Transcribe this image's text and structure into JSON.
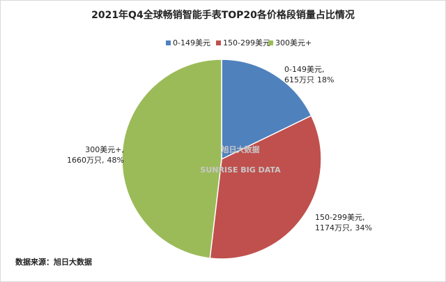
{
  "chart_data": {
    "type": "pie",
    "title": "2021年Q4全球畅销智能手表TOP20各价格段销量占比情况",
    "categories": [
      "0-149美元",
      "150-299美元",
      "300美元+"
    ],
    "data_label_names": [
      "0-149美元,",
      "150-299美元,",
      "300美元+,"
    ],
    "values": [
      615,
      1174,
      1660
    ],
    "value_labels": [
      "615万只",
      "1174万只,",
      "1660万只,"
    ],
    "percents": [
      18,
      34,
      48
    ],
    "percent_labels": [
      "18%",
      "34%",
      "48%"
    ],
    "colors": [
      "#4f81bd",
      "#c0504d",
      "#9bbb59"
    ],
    "legend": "top",
    "watermark": {
      "text": "旭日大数据",
      "subtext": "SUNRISE BIG DATA"
    },
    "source": "数据来源：旭日大数据"
  }
}
